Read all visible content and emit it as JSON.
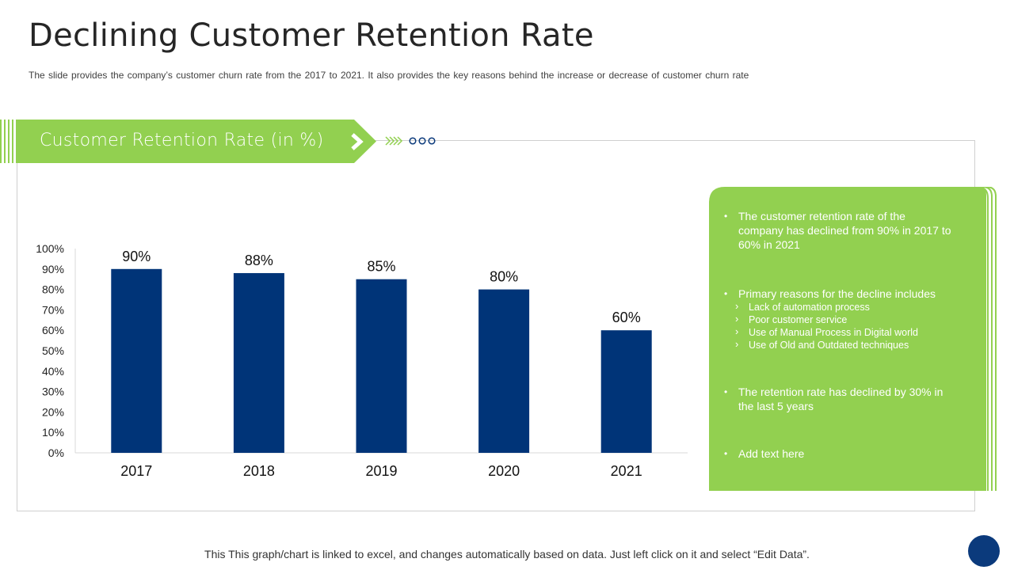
{
  "slide": {
    "title": "Declining Customer Retention Rate",
    "subtitle": "The slide provides  the company’s customer churn rate from the 2017 to 2021. It also provides  the key reasons behind the increase or decrease  of customer churn rate",
    "banner_title": "Customer Retention Rate (in %)",
    "footer": "This This graph/chart is linked to excel, and changes automatically based on data. Just left click on it and select “Edit Data”."
  },
  "colors": {
    "accent_green": "#92d050",
    "bar_navy": "#003478",
    "dot_navy": "#0b3a7c"
  },
  "chart_data": {
    "type": "bar",
    "title": "Customer Retention Rate (in %)",
    "categories": [
      "2017",
      "2018",
      "2019",
      "2020",
      "2021"
    ],
    "values": [
      90,
      88,
      85,
      80,
      60
    ],
    "data_labels": [
      "90%",
      "88%",
      "85%",
      "80%",
      "60%"
    ],
    "ylim": [
      0,
      100
    ],
    "yticks": [
      "0%",
      "10%",
      "20%",
      "30%",
      "40%",
      "50%",
      "60%",
      "70%",
      "80%",
      "90%",
      "100%"
    ],
    "xlabel": "",
    "ylabel": "",
    "grid": false,
    "legend": "none"
  },
  "panel": {
    "point1": "The customer retention rate of the company has declined from 90% in 2017 to 60% in 2021",
    "point2": "Primary reasons for the decline includes",
    "reasons": [
      "Lack of automation process",
      "Poor customer service",
      "Use of Manual Process in Digital world",
      "Use of Old and Outdated techniques"
    ],
    "point3": "The retention rate has declined by 30% in the last 5 years",
    "point4": "Add text here"
  }
}
